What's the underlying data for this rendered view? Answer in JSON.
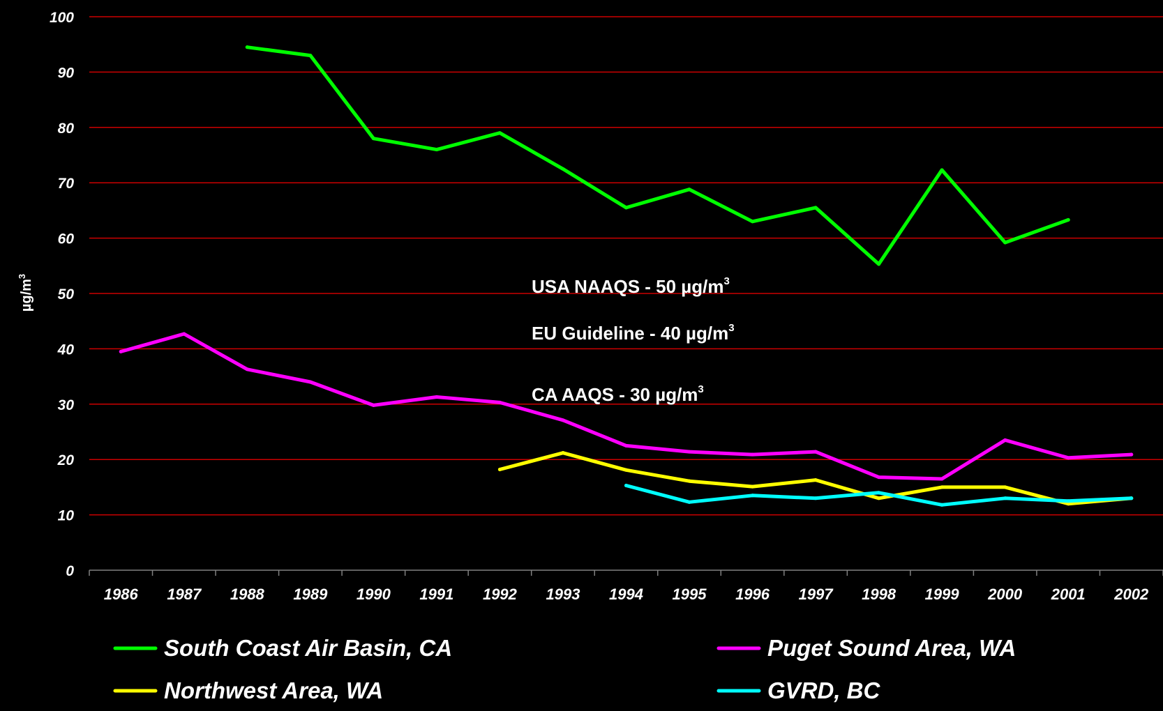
{
  "chart_data": {
    "type": "line",
    "x": [
      "1986",
      "1987",
      "1988",
      "1989",
      "1990",
      "1991",
      "1992",
      "1993",
      "1994",
      "1995",
      "1996",
      "1997",
      "1998",
      "1999",
      "2000",
      "2001",
      "2002"
    ],
    "ylabel": "µg/m",
    "ylabel_sup": "3",
    "ylim": [
      0,
      100
    ],
    "yticks": [
      0,
      10,
      20,
      30,
      40,
      50,
      60,
      70,
      80,
      90,
      100
    ],
    "grid": true,
    "grid_color": "#cc0000",
    "legend_position": "bottom",
    "annotations": [
      {
        "label": "USA NAAQS - 50 µg/m",
        "sup": "3"
      },
      {
        "label": "EU Guideline - 40 µg/m",
        "sup": "3"
      },
      {
        "label": "CA AAQS - 30 µg/m",
        "sup": "3"
      }
    ],
    "series": [
      {
        "name": "South Coast Air Basin, CA",
        "color": "#00ff00",
        "values": [
          null,
          null,
          94.5,
          93,
          78,
          76,
          79,
          72.5,
          65.5,
          68.8,
          63,
          65.5,
          55.3,
          72.3,
          59.2,
          63.3,
          null
        ]
      },
      {
        "name": "Puget Sound Area, WA",
        "color": "#ff00ff",
        "values": [
          39.5,
          42.7,
          36.3,
          34,
          29.8,
          31.3,
          30.3,
          27.1,
          22.5,
          21.4,
          20.9,
          21.4,
          16.8,
          16.5,
          23.5,
          20.3,
          20.9
        ]
      },
      {
        "name": "Northwest Area, WA",
        "color": "#ffff00",
        "values": [
          null,
          null,
          null,
          null,
          null,
          null,
          18.2,
          21.2,
          18.1,
          16.1,
          15.1,
          16.3,
          13,
          15,
          15,
          12,
          13
        ]
      },
      {
        "name": "GVRD, BC",
        "color": "#00ffff",
        "values": [
          null,
          null,
          null,
          null,
          null,
          null,
          null,
          null,
          15.3,
          12.3,
          13.5,
          13,
          14,
          11.8,
          13,
          12.5,
          13
        ]
      }
    ]
  }
}
